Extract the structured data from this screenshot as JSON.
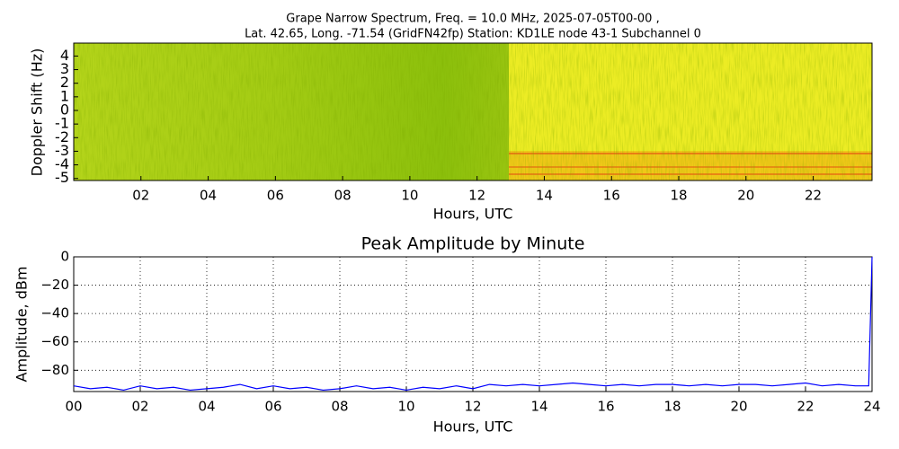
{
  "chart_data": [
    {
      "type": "spectrogram",
      "title": [
        "Grape Narrow Spectrum, Freq. = 10.0 MHz, 2025-07-05T00-00 ,",
        "Lat.  42.65, Long. -71.54 (GridFN42fp) Station: KD1LE node 43-1 Subchannel 0"
      ],
      "x_label": "Hours, UTC",
      "y_label": "Doppler Shift (Hz)",
      "xlim": [
        0,
        23.75
      ],
      "xticks": [
        {
          "value": 2,
          "label": "02"
        },
        {
          "value": 4,
          "label": "04"
        },
        {
          "value": 6,
          "label": "06"
        },
        {
          "value": 8,
          "label": "08"
        },
        10,
        12,
        14,
        16,
        18,
        20,
        22
      ],
      "ylim": [
        -5.15,
        4.95
      ],
      "yticks": [
        4,
        3,
        2,
        1,
        0,
        -1,
        -2,
        -3,
        -4,
        -5
      ]
    },
    {
      "type": "line",
      "title": "Peak Amplitude by Minute",
      "x_label": "Hours, UTC",
      "y_label": "Amplitude, dBm",
      "xlim": [
        0,
        24
      ],
      "xticks": [
        {
          "value": 0,
          "label": "00"
        },
        {
          "value": 2,
          "label": "02"
        },
        {
          "value": 4,
          "label": "04"
        },
        {
          "value": 6,
          "label": "06"
        },
        {
          "value": 8,
          "label": "08"
        },
        10,
        12,
        14,
        16,
        18,
        20,
        22,
        24
      ],
      "ylim": [
        -95,
        0
      ],
      "yticks": [
        0,
        {
          "value": -20,
          "label": "−20"
        },
        {
          "value": -40,
          "label": "−40"
        },
        {
          "value": -60,
          "label": "−60"
        },
        {
          "value": -80,
          "label": "−80"
        }
      ],
      "grid": true,
      "series": [
        {
          "color": "#0000ff",
          "x": [
            0,
            0.5,
            1,
            1.5,
            2,
            2.5,
            3,
            3.5,
            4,
            4.5,
            5,
            5.5,
            6,
            6.5,
            7,
            7.5,
            8,
            8.5,
            9,
            9.5,
            10,
            10.5,
            11,
            11.5,
            12,
            12.5,
            13,
            13.5,
            14,
            14.5,
            15,
            15.5,
            16,
            16.5,
            17,
            17.5,
            18,
            18.5,
            19,
            19.5,
            20,
            20.5,
            21,
            21.5,
            22,
            22.5,
            23,
            23.5,
            23.9,
            24
          ],
          "values": [
            -91,
            -93,
            -92,
            -94,
            -91,
            -93,
            -92,
            -94,
            -93,
            -92,
            -90,
            -93,
            -91,
            -93,
            -92,
            -94,
            -93,
            -91,
            -93,
            -92,
            -94,
            -92,
            -93,
            -91,
            -93,
            -90,
            -91,
            -90,
            -91,
            -90,
            -89,
            -90,
            -91,
            -90,
            -91,
            -90,
            -90,
            -91,
            -90,
            -91,
            -90,
            -90,
            -91,
            -90,
            -89,
            -91,
            -90,
            -91,
            -91,
            0
          ]
        }
      ]
    }
  ]
}
